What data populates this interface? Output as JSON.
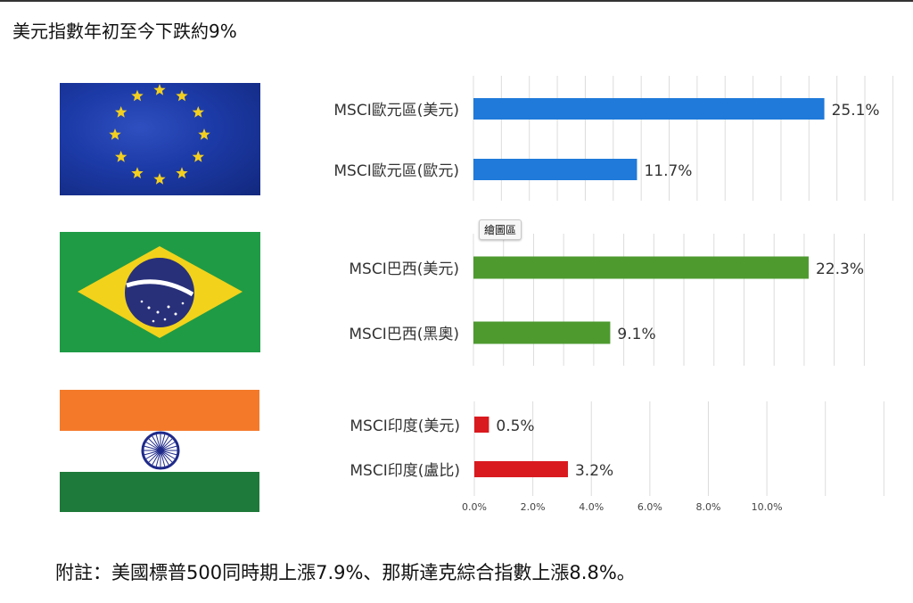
{
  "title": "美元指數年初至今下跌約9%",
  "note": "附註：美國標普500同時期上漲7.9%、那斯達克綜合指數上漲8.8%。",
  "tooltip": "繪圖區",
  "flags": [
    "eu-flag",
    "brazil-flag",
    "india-flag"
  ],
  "chart_data": [
    {
      "type": "bar",
      "orientation": "horizontal",
      "categories": [
        "MSCI歐元區(美元)",
        "MSCI歐元區(歐元)"
      ],
      "values": [
        25.1,
        11.7
      ],
      "value_labels": [
        "25.1%",
        "11.7%"
      ],
      "color": "#1f7ad9",
      "grid": true
    },
    {
      "type": "bar",
      "orientation": "horizontal",
      "categories": [
        "MSCI巴西(美元)",
        "MSCI巴西(黑奧)"
      ],
      "values": [
        22.3,
        9.1
      ],
      "value_labels": [
        "22.3%",
        "9.1%"
      ],
      "color": "#4e9a2f",
      "grid": true
    },
    {
      "type": "bar",
      "orientation": "horizontal",
      "categories": [
        "MSCI印度(美元)",
        "MSCI印度(盧比)"
      ],
      "values": [
        0.5,
        3.2
      ],
      "value_labels": [
        "0.5%",
        "3.2%"
      ],
      "color": "#d91a1f",
      "grid": true,
      "xlim": [
        0,
        12
      ],
      "xticks": [
        "0.0%",
        "2.0%",
        "4.0%",
        "6.0%",
        "8.0%",
        "10.0%"
      ]
    }
  ]
}
